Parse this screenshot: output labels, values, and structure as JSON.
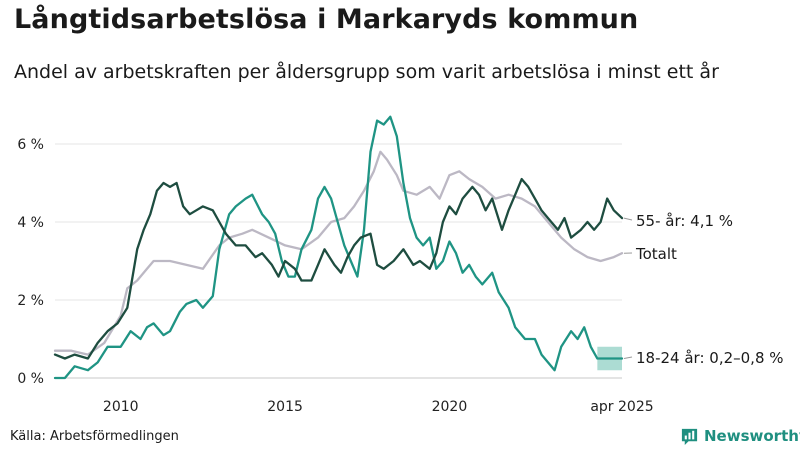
{
  "header": {
    "title": "Långtidsarbetslösa i Markaryds kommun",
    "subtitle": "Andel av arbetskraften per åldersgrupp som varit arbetslösa i minst ett år"
  },
  "footer": {
    "source": "Källa: Arbetsförmedlingen",
    "brand": "Newsworthy"
  },
  "colors": {
    "dark_green": "#1e4d40",
    "teal": "#1f9484",
    "gray": "#bcb8c4",
    "band": "#90d0c4",
    "brand": "#1f8f80"
  },
  "icons": {
    "brand": "bar-chart-speech-icon"
  },
  "chart_data": {
    "type": "line",
    "x_range": [
      "2008-01",
      "2025-04"
    ],
    "ylim": [
      0,
      7
    ],
    "y_ticks": [
      0,
      2,
      4,
      6
    ],
    "y_tick_labels": [
      "0 %",
      "2 %",
      "4 %",
      "6 %"
    ],
    "x_ticks": [
      2010,
      2015,
      2020,
      2025.25
    ],
    "x_tick_labels": [
      "2010",
      "2015",
      "2020",
      "apr 2025"
    ],
    "grid": "horizontal",
    "legend": "end-of-line labels",
    "series": [
      {
        "name": "55- år",
        "end_label": "55- år: 4,1 %",
        "color": "#1e4d40",
        "points": [
          [
            2008.0,
            0.6
          ],
          [
            2008.3,
            0.5
          ],
          [
            2008.6,
            0.6
          ],
          [
            2009.0,
            0.5
          ],
          [
            2009.3,
            0.9
          ],
          [
            2009.6,
            1.2
          ],
          [
            2009.9,
            1.4
          ],
          [
            2010.2,
            1.8
          ],
          [
            2010.5,
            3.3
          ],
          [
            2010.7,
            3.8
          ],
          [
            2010.9,
            4.2
          ],
          [
            2011.1,
            4.8
          ],
          [
            2011.3,
            5.0
          ],
          [
            2011.5,
            4.9
          ],
          [
            2011.7,
            5.0
          ],
          [
            2011.9,
            4.4
          ],
          [
            2012.1,
            4.2
          ],
          [
            2012.3,
            4.3
          ],
          [
            2012.5,
            4.4
          ],
          [
            2012.8,
            4.3
          ],
          [
            2013.0,
            4.0
          ],
          [
            2013.2,
            3.7
          ],
          [
            2013.5,
            3.4
          ],
          [
            2013.8,
            3.4
          ],
          [
            2014.1,
            3.1
          ],
          [
            2014.3,
            3.2
          ],
          [
            2014.6,
            2.9
          ],
          [
            2014.8,
            2.6
          ],
          [
            2015.0,
            3.0
          ],
          [
            2015.3,
            2.8
          ],
          [
            2015.5,
            2.5
          ],
          [
            2015.8,
            2.5
          ],
          [
            2016.0,
            2.9
          ],
          [
            2016.2,
            3.3
          ],
          [
            2016.5,
            2.9
          ],
          [
            2016.7,
            2.7
          ],
          [
            2016.9,
            3.1
          ],
          [
            2017.1,
            3.4
          ],
          [
            2017.3,
            3.6
          ],
          [
            2017.6,
            3.7
          ],
          [
            2017.8,
            2.9
          ],
          [
            2018.0,
            2.8
          ],
          [
            2018.3,
            3.0
          ],
          [
            2018.6,
            3.3
          ],
          [
            2018.9,
            2.9
          ],
          [
            2019.1,
            3.0
          ],
          [
            2019.4,
            2.8
          ],
          [
            2019.6,
            3.2
          ],
          [
            2019.8,
            4.0
          ],
          [
            2020.0,
            4.4
          ],
          [
            2020.2,
            4.2
          ],
          [
            2020.4,
            4.6
          ],
          [
            2020.7,
            4.9
          ],
          [
            2020.9,
            4.7
          ],
          [
            2021.1,
            4.3
          ],
          [
            2021.3,
            4.6
          ],
          [
            2021.6,
            3.8
          ],
          [
            2021.8,
            4.3
          ],
          [
            2022.0,
            4.7
          ],
          [
            2022.2,
            5.1
          ],
          [
            2022.4,
            4.9
          ],
          [
            2022.6,
            4.6
          ],
          [
            2022.8,
            4.3
          ],
          [
            2023.0,
            4.1
          ],
          [
            2023.3,
            3.8
          ],
          [
            2023.5,
            4.1
          ],
          [
            2023.7,
            3.6
          ],
          [
            2024.0,
            3.8
          ],
          [
            2024.2,
            4.0
          ],
          [
            2024.4,
            3.8
          ],
          [
            2024.6,
            4.0
          ],
          [
            2024.8,
            4.6
          ],
          [
            2025.0,
            4.3
          ],
          [
            2025.25,
            4.1
          ]
        ]
      },
      {
        "name": "Totalt",
        "end_label": "Totalt",
        "color": "#bcb8c4",
        "points": [
          [
            2008.0,
            0.7
          ],
          [
            2008.5,
            0.7
          ],
          [
            2009.0,
            0.6
          ],
          [
            2009.5,
            0.9
          ],
          [
            2010.0,
            1.6
          ],
          [
            2010.2,
            2.3
          ],
          [
            2010.5,
            2.5
          ],
          [
            2010.8,
            2.8
          ],
          [
            2011.0,
            3.0
          ],
          [
            2011.5,
            3.0
          ],
          [
            2012.0,
            2.9
          ],
          [
            2012.5,
            2.8
          ],
          [
            2013.0,
            3.4
          ],
          [
            2013.3,
            3.6
          ],
          [
            2013.7,
            3.7
          ],
          [
            2014.0,
            3.8
          ],
          [
            2014.5,
            3.6
          ],
          [
            2015.0,
            3.4
          ],
          [
            2015.5,
            3.3
          ],
          [
            2016.0,
            3.6
          ],
          [
            2016.4,
            4.0
          ],
          [
            2016.8,
            4.1
          ],
          [
            2017.1,
            4.4
          ],
          [
            2017.4,
            4.8
          ],
          [
            2017.7,
            5.3
          ],
          [
            2017.9,
            5.8
          ],
          [
            2018.1,
            5.6
          ],
          [
            2018.4,
            5.2
          ],
          [
            2018.6,
            4.8
          ],
          [
            2019.0,
            4.7
          ],
          [
            2019.4,
            4.9
          ],
          [
            2019.7,
            4.6
          ],
          [
            2020.0,
            5.2
          ],
          [
            2020.3,
            5.3
          ],
          [
            2020.6,
            5.1
          ],
          [
            2021.0,
            4.9
          ],
          [
            2021.4,
            4.6
          ],
          [
            2021.8,
            4.7
          ],
          [
            2022.2,
            4.6
          ],
          [
            2022.6,
            4.4
          ],
          [
            2023.0,
            4.0
          ],
          [
            2023.4,
            3.6
          ],
          [
            2023.8,
            3.3
          ],
          [
            2024.2,
            3.1
          ],
          [
            2024.6,
            3.0
          ],
          [
            2025.0,
            3.1
          ],
          [
            2025.25,
            3.2
          ]
        ]
      },
      {
        "name": "18-24 år",
        "end_label": "18-24 år: 0,2–0,8 %",
        "color": "#1f9484",
        "points": [
          [
            2008.0,
            0.0
          ],
          [
            2008.3,
            0.0
          ],
          [
            2008.6,
            0.3
          ],
          [
            2009.0,
            0.2
          ],
          [
            2009.3,
            0.4
          ],
          [
            2009.6,
            0.8
          ],
          [
            2010.0,
            0.8
          ],
          [
            2010.3,
            1.2
          ],
          [
            2010.6,
            1.0
          ],
          [
            2010.8,
            1.3
          ],
          [
            2011.0,
            1.4
          ],
          [
            2011.3,
            1.1
          ],
          [
            2011.5,
            1.2
          ],
          [
            2011.8,
            1.7
          ],
          [
            2012.0,
            1.9
          ],
          [
            2012.3,
            2.0
          ],
          [
            2012.5,
            1.8
          ],
          [
            2012.8,
            2.1
          ],
          [
            2013.0,
            3.3
          ],
          [
            2013.3,
            4.2
          ],
          [
            2013.5,
            4.4
          ],
          [
            2013.8,
            4.6
          ],
          [
            2014.0,
            4.7
          ],
          [
            2014.3,
            4.2
          ],
          [
            2014.5,
            4.0
          ],
          [
            2014.7,
            3.7
          ],
          [
            2014.9,
            3.0
          ],
          [
            2015.1,
            2.6
          ],
          [
            2015.3,
            2.6
          ],
          [
            2015.5,
            3.3
          ],
          [
            2015.8,
            3.8
          ],
          [
            2016.0,
            4.6
          ],
          [
            2016.2,
            4.9
          ],
          [
            2016.4,
            4.6
          ],
          [
            2016.6,
            4.0
          ],
          [
            2016.8,
            3.4
          ],
          [
            2017.0,
            3.0
          ],
          [
            2017.2,
            2.6
          ],
          [
            2017.4,
            3.8
          ],
          [
            2017.6,
            5.8
          ],
          [
            2017.8,
            6.6
          ],
          [
            2018.0,
            6.5
          ],
          [
            2018.2,
            6.7
          ],
          [
            2018.4,
            6.2
          ],
          [
            2018.6,
            5.0
          ],
          [
            2018.8,
            4.1
          ],
          [
            2019.0,
            3.6
          ],
          [
            2019.2,
            3.4
          ],
          [
            2019.4,
            3.6
          ],
          [
            2019.6,
            2.8
          ],
          [
            2019.8,
            3.0
          ],
          [
            2020.0,
            3.5
          ],
          [
            2020.2,
            3.2
          ],
          [
            2020.4,
            2.7
          ],
          [
            2020.6,
            2.9
          ],
          [
            2020.8,
            2.6
          ],
          [
            2021.0,
            2.4
          ],
          [
            2021.3,
            2.7
          ],
          [
            2021.5,
            2.2
          ],
          [
            2021.8,
            1.8
          ],
          [
            2022.0,
            1.3
          ],
          [
            2022.3,
            1.0
          ],
          [
            2022.6,
            1.0
          ],
          [
            2022.8,
            0.6
          ],
          [
            2023.0,
            0.4
          ],
          [
            2023.2,
            0.2
          ],
          [
            2023.4,
            0.8
          ],
          [
            2023.7,
            1.2
          ],
          [
            2023.9,
            1.0
          ],
          [
            2024.1,
            1.3
          ],
          [
            2024.3,
            0.8
          ],
          [
            2024.5,
            0.5
          ],
          [
            2024.8,
            0.5
          ],
          [
            2025.0,
            0.5
          ],
          [
            2025.25,
            0.5
          ]
        ]
      }
    ],
    "range_band": {
      "series": "18-24 år",
      "x": [
        2024.5,
        2025.25
      ],
      "low": [
        0.2,
        0.2
      ],
      "high": [
        0.8,
        0.8
      ]
    }
  }
}
